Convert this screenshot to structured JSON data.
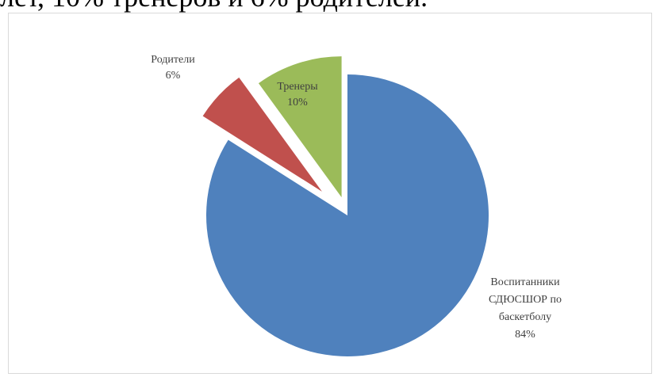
{
  "document": {
    "text_above_chart": "лет, 10% тренеров и 6% родителей."
  },
  "chart_data": {
    "type": "pie",
    "title": "",
    "legend": "none",
    "exploded": true,
    "start_angle_deg": 0,
    "direction": "clockwise",
    "slices": [
      {
        "label_lines": [
          "Воспитанники",
          "СДЮСШОР по",
          "баскетболу",
          "84%"
        ],
        "value": 84,
        "color": "#4f81bd",
        "label_color": "#404040"
      },
      {
        "label_lines": [
          "Родители",
          "6%"
        ],
        "value": 6,
        "color": "#c0504d",
        "label_color": "#404040"
      },
      {
        "label_lines": [
          "Тренеры",
          "10%"
        ],
        "value": 10,
        "color": "#9bbb59",
        "label_color": "#404040"
      }
    ]
  }
}
